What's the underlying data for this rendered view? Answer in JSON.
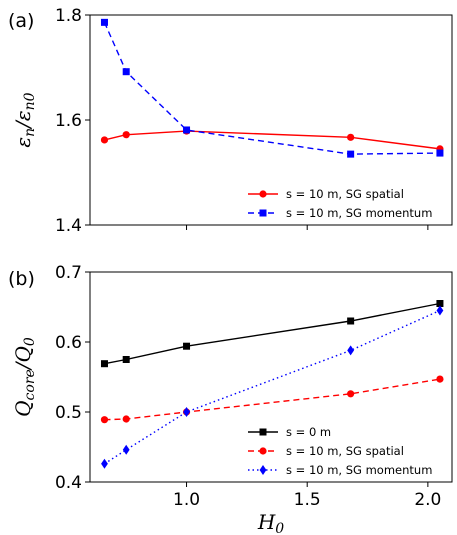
{
  "chart_data": [
    {
      "panel_label": "(a)",
      "type": "line",
      "ylabel_main": "ε",
      "ylabel_num_sub": "n",
      "ylabel_sep": "/ε",
      "ylabel_den_sub": "n0",
      "xlim": [
        0.6,
        2.1
      ],
      "ylim": [
        1.4,
        1.8
      ],
      "x_ticks": [
        1.0,
        1.5,
        2.0
      ],
      "x_tick_labels": [
        "1.0",
        "1.5",
        "2.0"
      ],
      "y_ticks": [
        1.4,
        1.6,
        1.8
      ],
      "y_tick_labels": [
        "1.4",
        "1.6",
        "1.8"
      ],
      "show_x_tick_labels": false,
      "legend_position": "lower right",
      "series": [
        {
          "name": "s = 10 m, SG spatial",
          "color": "#ff0000",
          "marker": "circle",
          "linestyle": "solid",
          "x": [
            0.66,
            0.75,
            1.0,
            1.68,
            2.05
          ],
          "y": [
            1.562,
            1.572,
            1.579,
            1.567,
            1.545
          ]
        },
        {
          "name": "s = 10 m, SG momentum",
          "color": "#0000ff",
          "marker": "square",
          "linestyle": "dashed",
          "x": [
            0.66,
            0.75,
            1.0,
            1.68,
            2.05
          ],
          "y": [
            1.786,
            1.692,
            1.581,
            1.535,
            1.537
          ]
        }
      ]
    },
    {
      "panel_label": "(b)",
      "type": "line",
      "ylabel_main": "Q",
      "ylabel_num_sub": "core",
      "ylabel_sep": "/Q",
      "ylabel_den_sub": "0",
      "xlabel_main": "H",
      "xlabel_sub": "0",
      "xlim": [
        0.6,
        2.1
      ],
      "ylim": [
        0.4,
        0.7
      ],
      "x_ticks": [
        1.0,
        1.5,
        2.0
      ],
      "x_tick_labels": [
        "1.0",
        "1.5",
        "2.0"
      ],
      "y_ticks": [
        0.4,
        0.5,
        0.6,
        0.7
      ],
      "y_tick_labels": [
        "0.4",
        "0.5",
        "0.6",
        "0.7"
      ],
      "show_x_tick_labels": true,
      "legend_position": "lower right",
      "series": [
        {
          "name": "s = 0 m",
          "color": "#000000",
          "marker": "square",
          "linestyle": "solid",
          "x": [
            0.66,
            0.75,
            1.0,
            1.68,
            2.05
          ],
          "y": [
            0.569,
            0.575,
            0.594,
            0.63,
            0.655
          ]
        },
        {
          "name": "s = 10 m, SG spatial",
          "color": "#ff0000",
          "marker": "circle",
          "linestyle": "dashed",
          "x": [
            0.66,
            0.75,
            1.0,
            1.68,
            2.05
          ],
          "y": [
            0.489,
            0.49,
            0.5,
            0.526,
            0.547
          ]
        },
        {
          "name": "s = 10 m, SG momentum",
          "color": "#0000ff",
          "marker": "diamond",
          "linestyle": "dotted",
          "x": [
            0.66,
            0.75,
            1.0,
            1.68,
            2.05
          ],
          "y": [
            0.426,
            0.446,
            0.5,
            0.588,
            0.645
          ]
        }
      ]
    }
  ]
}
